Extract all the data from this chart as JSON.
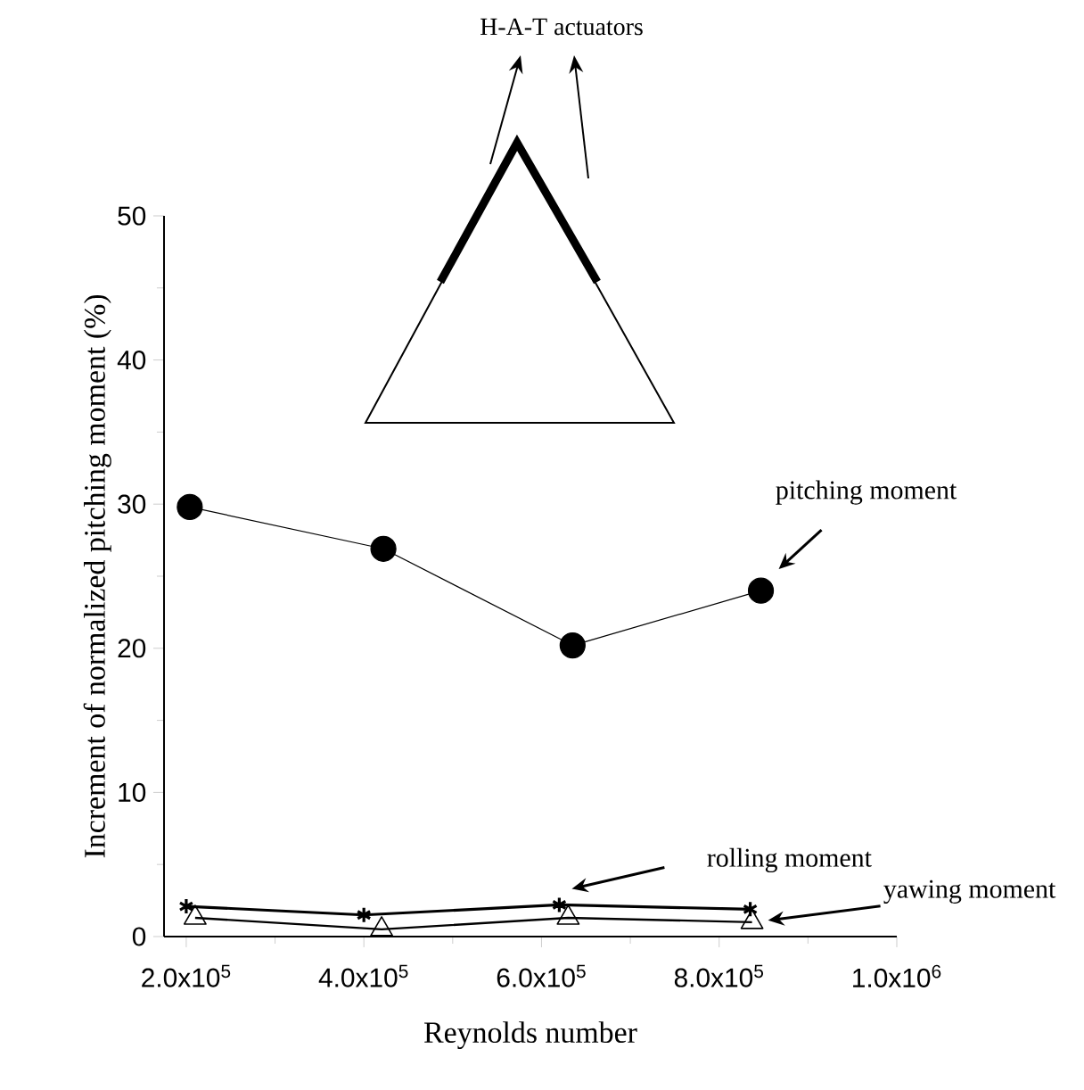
{
  "chart_data": {
    "type": "line",
    "xlabel": "Reynolds number",
    "ylabel": "Increment of normalized pitching moment (%)",
    "annotations": [
      "H-A-T actuators"
    ],
    "xlim": [
      175000,
      1000000
    ],
    "ylim": [
      0,
      50
    ],
    "xticks": [
      {
        "value": 200000,
        "label": "2.0x10$^{5}$"
      },
      {
        "value": 400000,
        "label": "4.0x10$^{5}$"
      },
      {
        "value": 600000,
        "label": "6.0x10$^{5}$"
      },
      {
        "value": 800000,
        "label": "8.0x10$^{5}$"
      },
      {
        "value": 1000000,
        "label": "1.0x10$^{6}$"
      }
    ],
    "yticks": [
      0,
      10,
      20,
      30,
      40,
      50
    ],
    "series": [
      {
        "name": "pitching moment",
        "color": "#000000",
        "marker": "circle",
        "x": [
          204000,
          422000,
          635000,
          847000
        ],
        "values": [
          29.8,
          26.9,
          20.2,
          24.0
        ]
      },
      {
        "name": "rolling moment",
        "color": "#000000",
        "marker": "cross",
        "x": [
          200000,
          400000,
          620000,
          835000
        ],
        "values": [
          2.1,
          1.5,
          2.2,
          1.9
        ]
      },
      {
        "name": "yawing moment",
        "color": "#000000",
        "marker": "triangle",
        "x": [
          210000,
          420000,
          630000,
          837000
        ],
        "values": [
          1.3,
          0.5,
          1.3,
          1.0
        ]
      }
    ]
  }
}
